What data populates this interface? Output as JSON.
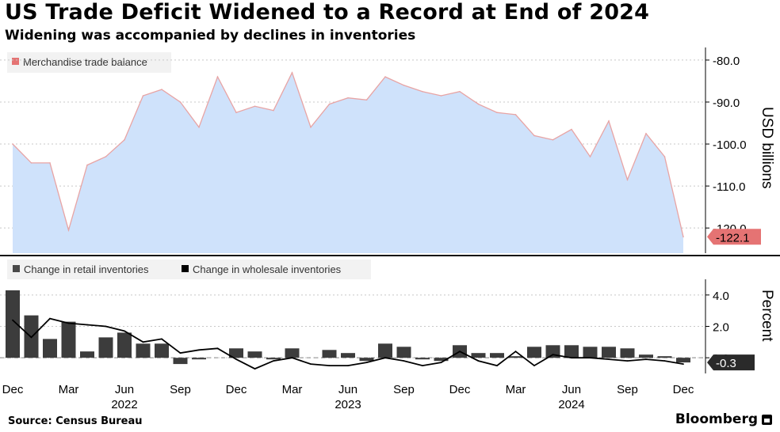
{
  "title": "US Trade Deficit Widened to a Record at End of 2024",
  "subtitle": "Widening was accompanied by declines in inventories",
  "source": "Source: Census Bureau",
  "brand": "Bloomberg",
  "colors": {
    "area_fill": "#cfe2fb",
    "area_line": "#e8a4a4",
    "bar": "#3c3c3c",
    "line": "#000000",
    "label_red": "#e57373",
    "label_dark": "#2a2a2a"
  },
  "chart_data": [
    {
      "type": "area",
      "legend": [
        "Merchandise trade balance"
      ],
      "ylabel": "USD billions",
      "ylim": [
        -126,
        -77
      ],
      "yticks": [
        -80,
        -90,
        -100,
        -110,
        -120
      ],
      "ytick_labels": [
        "-80.0",
        "-90.0",
        "-100.0",
        "-110.0",
        "-120.0"
      ],
      "x": [
        "Dec 2021",
        "Jan 2022",
        "Feb 2022",
        "Mar 2022",
        "Apr 2022",
        "May 2022",
        "Jun 2022",
        "Jul 2022",
        "Aug 2022",
        "Sep 2022",
        "Oct 2022",
        "Nov 2022",
        "Dec 2022",
        "Jan 2023",
        "Feb 2023",
        "Mar 2023",
        "Apr 2023",
        "May 2023",
        "Jun 2023",
        "Jul 2023",
        "Aug 2023",
        "Sep 2023",
        "Oct 2023",
        "Nov 2023",
        "Dec 2023",
        "Jan 2024",
        "Feb 2024",
        "Mar 2024",
        "Apr 2024",
        "May 2024",
        "Jun 2024",
        "Jul 2024",
        "Aug 2024",
        "Sep 2024",
        "Oct 2024",
        "Nov 2024",
        "Dec 2024"
      ],
      "values": [
        -100.0,
        -104.5,
        -104.5,
        -120.5,
        -105,
        -103,
        -99,
        -88.5,
        -87,
        -90,
        -96,
        -84,
        -92.5,
        -91,
        -92,
        -83,
        -96,
        -90.5,
        -89,
        -89.5,
        -84,
        -86,
        -87.5,
        -88.5,
        -87.5,
        -90.5,
        -92.5,
        -93,
        -98,
        -99,
        -96.5,
        -103,
        -94.5,
        -108.5,
        -97.5,
        -103,
        -122.1
      ],
      "last_label": "-122.1"
    },
    {
      "type": "bar+line",
      "legend": [
        "Change in retail inventories",
        "Change in wholesale inventories"
      ],
      "ylabel": "Percent",
      "ylim": [
        -1.0,
        5.0
      ],
      "yticks": [
        4.0,
        2.0,
        0.0
      ],
      "ytick_labels": [
        "4.0",
        "2.0",
        "0.0"
      ],
      "x": [
        "Dec 2021",
        "Jan 2022",
        "Feb 2022",
        "Mar 2022",
        "Apr 2022",
        "May 2022",
        "Jun 2022",
        "Jul 2022",
        "Aug 2022",
        "Sep 2022",
        "Oct 2022",
        "Nov 2022",
        "Dec 2022",
        "Jan 2023",
        "Feb 2023",
        "Mar 2023",
        "Apr 2023",
        "May 2023",
        "Jun 2023",
        "Jul 2023",
        "Aug 2023",
        "Sep 2023",
        "Oct 2023",
        "Nov 2023",
        "Dec 2023",
        "Jan 2024",
        "Feb 2024",
        "Mar 2024",
        "Apr 2024",
        "May 2024",
        "Jun 2024",
        "Jul 2024",
        "Aug 2024",
        "Sep 2024",
        "Oct 2024",
        "Nov 2024",
        "Dec 2024"
      ],
      "series": [
        {
          "name": "Change in retail inventories",
          "type": "bar",
          "values": [
            4.3,
            2.7,
            1.2,
            2.3,
            0.4,
            1.3,
            1.6,
            0.9,
            0.9,
            -0.4,
            -0.1,
            0,
            0.6,
            0.4,
            -0.1,
            0.6,
            0,
            0.5,
            0.3,
            -0.2,
            0.9,
            0.7,
            -0.1,
            -0.2,
            0.8,
            0.3,
            0.3,
            0.1,
            0.7,
            0.8,
            0.8,
            0.7,
            0.7,
            0.6,
            0.2,
            0.1,
            -0.3
          ]
        },
        {
          "name": "Change in wholesale inventories",
          "type": "line",
          "values": [
            2.4,
            1.3,
            2.5,
            2.2,
            2.1,
            2.0,
            1.7,
            1.0,
            1.2,
            0.3,
            0.5,
            0.6,
            -0.1,
            -0.7,
            -0.2,
            0.0,
            -0.4,
            -0.5,
            -0.5,
            -0.3,
            0.0,
            -0.2,
            -0.5,
            -0.3,
            0.4,
            -0.2,
            -0.5,
            0.4,
            -0.5,
            0.2,
            0.0,
            0.0,
            -0.1,
            -0.2,
            -0.1,
            -0.2,
            -0.4
          ]
        }
      ],
      "last_label": "-0.3"
    }
  ],
  "x_axis": {
    "month_labels": [
      {
        "label": "Dec",
        "index": 0
      },
      {
        "label": "Mar",
        "index": 3
      },
      {
        "label": "Jun",
        "index": 6
      },
      {
        "label": "Sep",
        "index": 9
      },
      {
        "label": "Dec",
        "index": 12
      },
      {
        "label": "Mar",
        "index": 15
      },
      {
        "label": "Jun",
        "index": 18
      },
      {
        "label": "Sep",
        "index": 21
      },
      {
        "label": "Dec",
        "index": 24
      },
      {
        "label": "Mar",
        "index": 27
      },
      {
        "label": "Jun",
        "index": 30
      },
      {
        "label": "Sep",
        "index": 33
      },
      {
        "label": "Dec",
        "index": 36
      }
    ],
    "year_labels": [
      {
        "label": "2022",
        "index": 6
      },
      {
        "label": "2023",
        "index": 18
      },
      {
        "label": "2024",
        "index": 30
      }
    ]
  }
}
